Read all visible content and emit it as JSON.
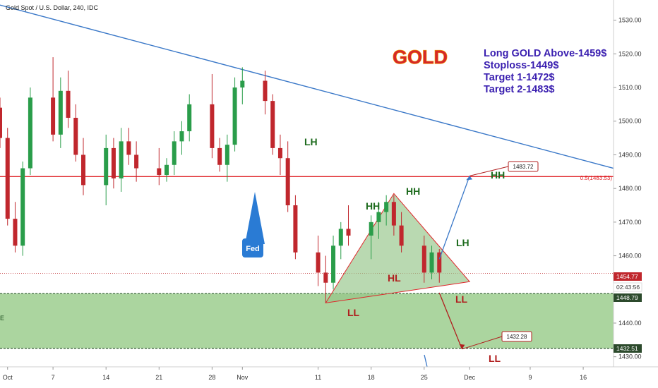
{
  "header": {
    "symbol_title": "Gold Spot / U.S. Dollar, 240, IDC"
  },
  "title": {
    "text": "GOLD"
  },
  "trade_plan": {
    "line1": "Long GOLD Above-1459$",
    "line2": "Stoploss-1449$",
    "line3": "Target 1-1472$",
    "line4": "Target 2-1483$"
  },
  "colors": {
    "bull": "#2a9d4a",
    "bear": "#c0272d",
    "trendline": "#3a78c8",
    "resistance": "#e0262b",
    "zone_fill": "#8fc77f",
    "wave_green": "#1d6b1d",
    "wave_red": "#b01e1e",
    "triangle_fill": "#93c487",
    "fed_badge": "#2a7bd4"
  },
  "annotations": {
    "fed": "Fed",
    "fib_label": "0.5(1483.53)",
    "zone_mark": "E",
    "lh_1": "LH",
    "hh_1": "HH",
    "hh_2": "HH",
    "hl_1": "HL",
    "lh_2": "LH",
    "ll_1": "LL",
    "ll_2": "LL",
    "hh_target": "HH",
    "ll_target": "LL"
  },
  "price_tags": {
    "current": "1454.77",
    "countdown": "02:43:56",
    "zone_top": "1448.79",
    "zone_bottom": "1432.51"
  },
  "callouts": {
    "target_up": "1483.72",
    "target_down": "1432.28"
  },
  "chart_data": {
    "type": "candlestick",
    "title": "",
    "xlabel": "",
    "ylabel": "",
    "ylim": [
      1427,
      1536
    ],
    "x_ticks": [
      "Oct",
      "7",
      "14",
      "21",
      "28",
      "Nov",
      "11",
      "18",
      "25",
      "Dec",
      "9",
      "16"
    ],
    "y_ticks": [
      1430.0,
      1440.0,
      1450.0,
      1460.0,
      1470.0,
      1480.0,
      1490.0,
      1500.0,
      1510.0,
      1520.0,
      1530.0
    ],
    "grid": false,
    "x_start": "2019-09-30",
    "x_end": "2019-12-20",
    "resistance_level": 1483.53,
    "demand_zone": [
      1432.51,
      1448.79
    ],
    "current_price": 1454.77,
    "trendline": [
      {
        "date": "2019-09-30",
        "price": 1534.5
      },
      {
        "date": "2019-12-20",
        "price": 1486.0
      }
    ],
    "triangle": [
      {
        "date": "2019-11-12",
        "price": 1446.0
      },
      {
        "date": "2019-11-21",
        "price": 1478.5
      },
      {
        "date": "2019-12-01",
        "price": 1452.3
      }
    ],
    "projection_up": [
      {
        "date": "2019-11-27",
        "price": 1459.0
      },
      {
        "date": "2019-12-01",
        "price": 1483.72
      }
    ],
    "projection_down": [
      {
        "date": "2019-11-27",
        "price": 1449.0
      },
      {
        "date": "2019-11-30",
        "price": 1432.28
      }
    ],
    "candles": [
      {
        "date": "2019-09-30",
        "o": 1504,
        "h": 1507,
        "l": 1492,
        "c": 1495
      },
      {
        "date": "2019-10-01",
        "o": 1495,
        "h": 1498,
        "l": 1469,
        "c": 1471
      },
      {
        "date": "2019-10-02",
        "o": 1471,
        "h": 1476,
        "l": 1461,
        "c": 1463
      },
      {
        "date": "2019-10-03",
        "o": 1463,
        "h": 1488,
        "l": 1460,
        "c": 1486
      },
      {
        "date": "2019-10-04",
        "o": 1486,
        "h": 1510,
        "l": 1484,
        "c": 1507
      },
      {
        "date": "2019-10-07",
        "o": 1507,
        "h": 1519,
        "l": 1494,
        "c": 1496
      },
      {
        "date": "2019-10-08",
        "o": 1496,
        "h": 1513,
        "l": 1492,
        "c": 1509
      },
      {
        "date": "2019-10-09",
        "o": 1509,
        "h": 1515,
        "l": 1498,
        "c": 1501
      },
      {
        "date": "2019-10-10",
        "o": 1501,
        "h": 1505,
        "l": 1488,
        "c": 1490
      },
      {
        "date": "2019-10-11",
        "o": 1490,
        "h": 1495,
        "l": 1478,
        "c": 1481
      },
      {
        "date": "2019-10-14",
        "o": 1481,
        "h": 1496,
        "l": 1475,
        "c": 1492
      },
      {
        "date": "2019-10-15",
        "o": 1492,
        "h": 1495,
        "l": 1480,
        "c": 1483
      },
      {
        "date": "2019-10-16",
        "o": 1483,
        "h": 1498,
        "l": 1479,
        "c": 1494
      },
      {
        "date": "2019-10-17",
        "o": 1494,
        "h": 1498,
        "l": 1487,
        "c": 1490
      },
      {
        "date": "2019-10-18",
        "o": 1490,
        "h": 1494,
        "l": 1482,
        "c": 1486
      },
      {
        "date": "2019-10-21",
        "o": 1486,
        "h": 1492,
        "l": 1481,
        "c": 1484
      },
      {
        "date": "2019-10-22",
        "o": 1484,
        "h": 1489,
        "l": 1482,
        "c": 1487
      },
      {
        "date": "2019-10-23",
        "o": 1487,
        "h": 1497,
        "l": 1484,
        "c": 1494
      },
      {
        "date": "2019-10-24",
        "o": 1494,
        "h": 1500,
        "l": 1490,
        "c": 1497
      },
      {
        "date": "2019-10-25",
        "o": 1497,
        "h": 1508,
        "l": 1494,
        "c": 1505
      },
      {
        "date": "2019-10-28",
        "o": 1505,
        "h": 1514,
        "l": 1489,
        "c": 1492
      },
      {
        "date": "2019-10-29",
        "o": 1492,
        "h": 1495,
        "l": 1485,
        "c": 1487
      },
      {
        "date": "2019-10-30",
        "o": 1487,
        "h": 1496,
        "l": 1482,
        "c": 1493
      },
      {
        "date": "2019-10-31",
        "o": 1493,
        "h": 1513,
        "l": 1491,
        "c": 1510
      },
      {
        "date": "2019-11-01",
        "o": 1510,
        "h": 1516,
        "l": 1505,
        "c": 1512
      },
      {
        "date": "2019-11-04",
        "o": 1512,
        "h": 1515,
        "l": 1502,
        "c": 1506
      },
      {
        "date": "2019-11-05",
        "o": 1506,
        "h": 1508,
        "l": 1490,
        "c": 1492
      },
      {
        "date": "2019-11-06",
        "o": 1492,
        "h": 1496,
        "l": 1484,
        "c": 1489
      },
      {
        "date": "2019-11-07",
        "o": 1489,
        "h": 1494,
        "l": 1473,
        "c": 1475
      },
      {
        "date": "2019-11-08",
        "o": 1475,
        "h": 1478,
        "l": 1459,
        "c": 1461
      },
      {
        "date": "2019-11-11",
        "o": 1461,
        "h": 1466,
        "l": 1451,
        "c": 1455
      },
      {
        "date": "2019-11-12",
        "o": 1455,
        "h": 1460,
        "l": 1446,
        "c": 1452
      },
      {
        "date": "2019-11-13",
        "o": 1452,
        "h": 1466,
        "l": 1450,
        "c": 1463
      },
      {
        "date": "2019-11-14",
        "o": 1463,
        "h": 1470,
        "l": 1459,
        "c": 1468
      },
      {
        "date": "2019-11-15",
        "o": 1468,
        "h": 1475,
        "l": 1463,
        "c": 1466
      },
      {
        "date": "2019-11-18",
        "o": 1466,
        "h": 1472,
        "l": 1459,
        "c": 1470
      },
      {
        "date": "2019-11-19",
        "o": 1470,
        "h": 1476,
        "l": 1465,
        "c": 1473
      },
      {
        "date": "2019-11-20",
        "o": 1473,
        "h": 1478,
        "l": 1469,
        "c": 1476
      },
      {
        "date": "2019-11-21",
        "o": 1476,
        "h": 1478,
        "l": 1466,
        "c": 1469
      },
      {
        "date": "2019-11-22",
        "o": 1469,
        "h": 1473,
        "l": 1461,
        "c": 1463
      },
      {
        "date": "2019-11-25",
        "o": 1463,
        "h": 1466,
        "l": 1452,
        "c": 1455
      },
      {
        "date": "2019-11-26",
        "o": 1455,
        "h": 1463,
        "l": 1453,
        "c": 1461
      },
      {
        "date": "2019-11-27",
        "o": 1461,
        "h": 1462,
        "l": 1452,
        "c": 1455
      }
    ]
  }
}
